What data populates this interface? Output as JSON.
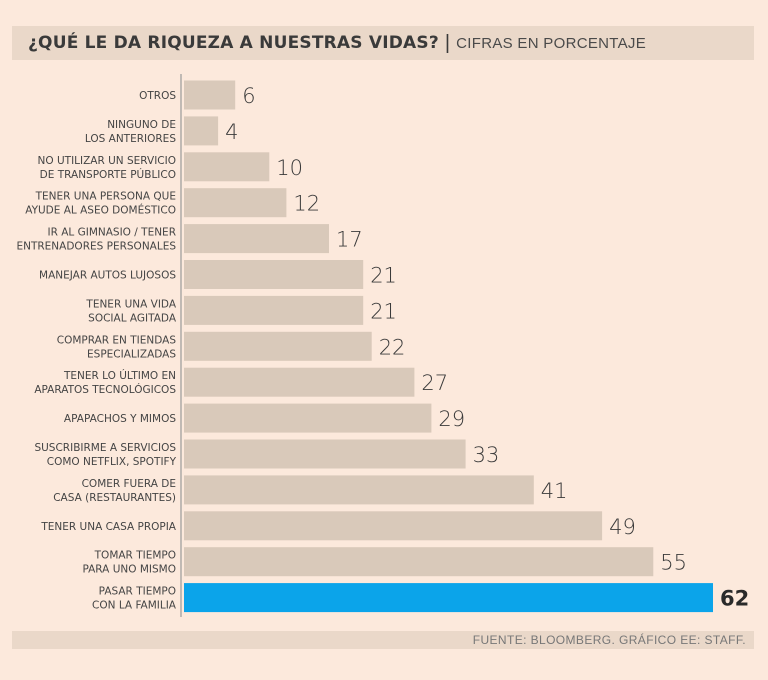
{
  "title": "¿QUÉ LE DA RIQUEZA A NUESTRAS VIDAS?",
  "subtitle": "CIFRAS EN PORCENTAJE",
  "source": "FUENTE: BLOOMBERG. GRÁFICO EE: STAFF.",
  "colors": {
    "bar": "#d9c9ba",
    "highlight": "#0ba4ea",
    "background": "#fce9dc",
    "band": "#ead8c9"
  },
  "chart_data": {
    "type": "bar",
    "orientation": "horizontal",
    "title": "¿QUÉ LE DA RIQUEZA A NUESTRAS VIDAS?",
    "subtitle": "CIFRAS EN PORCENTAJE",
    "categories": [
      [
        "OTROS"
      ],
      [
        "NINGUNO DE",
        "LOS ANTERIORES"
      ],
      [
        "NO UTILIZAR UN SERVICIO",
        "DE TRANSPORTE PÚBLICO"
      ],
      [
        "TENER UNA PERSONA QUE",
        "AYUDE AL ASEO DOMÉSTICO"
      ],
      [
        "IR AL GIMNASIO / TENER",
        "ENTRENADORES PERSONALES"
      ],
      [
        "MANEJAR AUTOS LUJOSOS"
      ],
      [
        "TENER UNA VIDA",
        "SOCIAL AGITADA"
      ],
      [
        "COMPRAR EN TIENDAS",
        "ESPECIALIZADAS"
      ],
      [
        "TENER LO ÚLTIMO EN",
        "APARATOS TECNOLÓGICOS"
      ],
      [
        "APAPACHOS Y MIMOS"
      ],
      [
        "SUSCRIBIRME A SERVICIOS",
        "COMO NETFLIX, SPOTIFY"
      ],
      [
        "COMER FUERA DE",
        "CASA (RESTAURANTES)"
      ],
      [
        "TENER UNA CASA PROPIA"
      ],
      [
        "TOMAR TIEMPO",
        "PARA UNO MISMO"
      ],
      [
        "PASAR TIEMPO",
        "CON LA FAMILIA"
      ]
    ],
    "values": [
      6,
      4,
      10,
      12,
      17,
      21,
      21,
      22,
      27,
      29,
      33,
      41,
      49,
      55,
      62
    ],
    "highlight_index": 14,
    "xlim": [
      0,
      62
    ],
    "grid": false,
    "legend": "none"
  }
}
